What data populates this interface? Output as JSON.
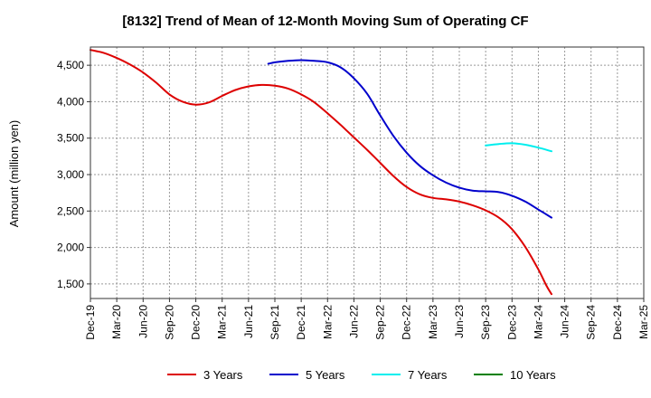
{
  "chart_data": {
    "type": "line",
    "title": "[8132]  Trend of Mean of 12-Month Moving Sum of Operating CF",
    "xlabel": "",
    "ylabel": "Amount (million yen)",
    "ylim": [
      1300,
      4750
    ],
    "yticks": [
      1500,
      2000,
      2500,
      3000,
      3500,
      4000,
      4500
    ],
    "ytick_labels": [
      "1,500",
      "2,000",
      "2,500",
      "3,000",
      "3,500",
      "4,000",
      "4,500"
    ],
    "x_categories": [
      "Dec-19",
      "Mar-20",
      "Jun-20",
      "Sep-20",
      "Dec-20",
      "Mar-21",
      "Jun-21",
      "Sep-21",
      "Dec-21",
      "Mar-22",
      "Jun-22",
      "Sep-22",
      "Dec-22",
      "Mar-23",
      "Jun-23",
      "Sep-23",
      "Dec-23",
      "Mar-24",
      "Jun-24",
      "Sep-24",
      "Dec-24",
      "Mar-25"
    ],
    "grid": true,
    "legend_position": "bottom",
    "series": [
      {
        "name": "3 Years",
        "color": "#dd0000",
        "points": [
          [
            0,
            4710
          ],
          [
            0.5,
            4670
          ],
          [
            1,
            4600
          ],
          [
            1.5,
            4510
          ],
          [
            2,
            4400
          ],
          [
            2.5,
            4260
          ],
          [
            3,
            4100
          ],
          [
            3.5,
            4000
          ],
          [
            4,
            3960
          ],
          [
            4.5,
            3990
          ],
          [
            5,
            4080
          ],
          [
            5.5,
            4160
          ],
          [
            6,
            4210
          ],
          [
            6.5,
            4230
          ],
          [
            7,
            4220
          ],
          [
            7.5,
            4180
          ],
          [
            8,
            4100
          ],
          [
            8.5,
            3990
          ],
          [
            9,
            3840
          ],
          [
            9.5,
            3680
          ],
          [
            10,
            3510
          ],
          [
            10.5,
            3340
          ],
          [
            11,
            3160
          ],
          [
            11.5,
            2980
          ],
          [
            12,
            2830
          ],
          [
            12.5,
            2730
          ],
          [
            13,
            2680
          ],
          [
            13.5,
            2660
          ],
          [
            14,
            2630
          ],
          [
            14.5,
            2580
          ],
          [
            15,
            2510
          ],
          [
            15.5,
            2410
          ],
          [
            16,
            2250
          ],
          [
            16.5,
            2010
          ],
          [
            17,
            1700
          ],
          [
            17.3,
            1480
          ],
          [
            17.5,
            1360
          ]
        ]
      },
      {
        "name": "5 Years",
        "color": "#0000cc",
        "points": [
          [
            6.75,
            4520
          ],
          [
            7,
            4540
          ],
          [
            7.5,
            4560
          ],
          [
            8,
            4570
          ],
          [
            8.5,
            4560
          ],
          [
            9,
            4540
          ],
          [
            9.5,
            4470
          ],
          [
            10,
            4320
          ],
          [
            10.5,
            4110
          ],
          [
            11,
            3810
          ],
          [
            11.5,
            3530
          ],
          [
            12,
            3300
          ],
          [
            12.5,
            3120
          ],
          [
            13,
            2990
          ],
          [
            13.5,
            2890
          ],
          [
            14,
            2820
          ],
          [
            14.5,
            2780
          ],
          [
            15,
            2770
          ],
          [
            15.5,
            2760
          ],
          [
            16,
            2710
          ],
          [
            16.5,
            2630
          ],
          [
            17,
            2520
          ],
          [
            17.5,
            2410
          ]
        ]
      },
      {
        "name": "7 Years",
        "color": "#00eeee",
        "points": [
          [
            15,
            3400
          ],
          [
            15.5,
            3420
          ],
          [
            16,
            3430
          ],
          [
            16.5,
            3410
          ],
          [
            17,
            3370
          ],
          [
            17.5,
            3320
          ]
        ]
      },
      {
        "name": "10 Years",
        "color": "#008000",
        "points": []
      }
    ]
  }
}
